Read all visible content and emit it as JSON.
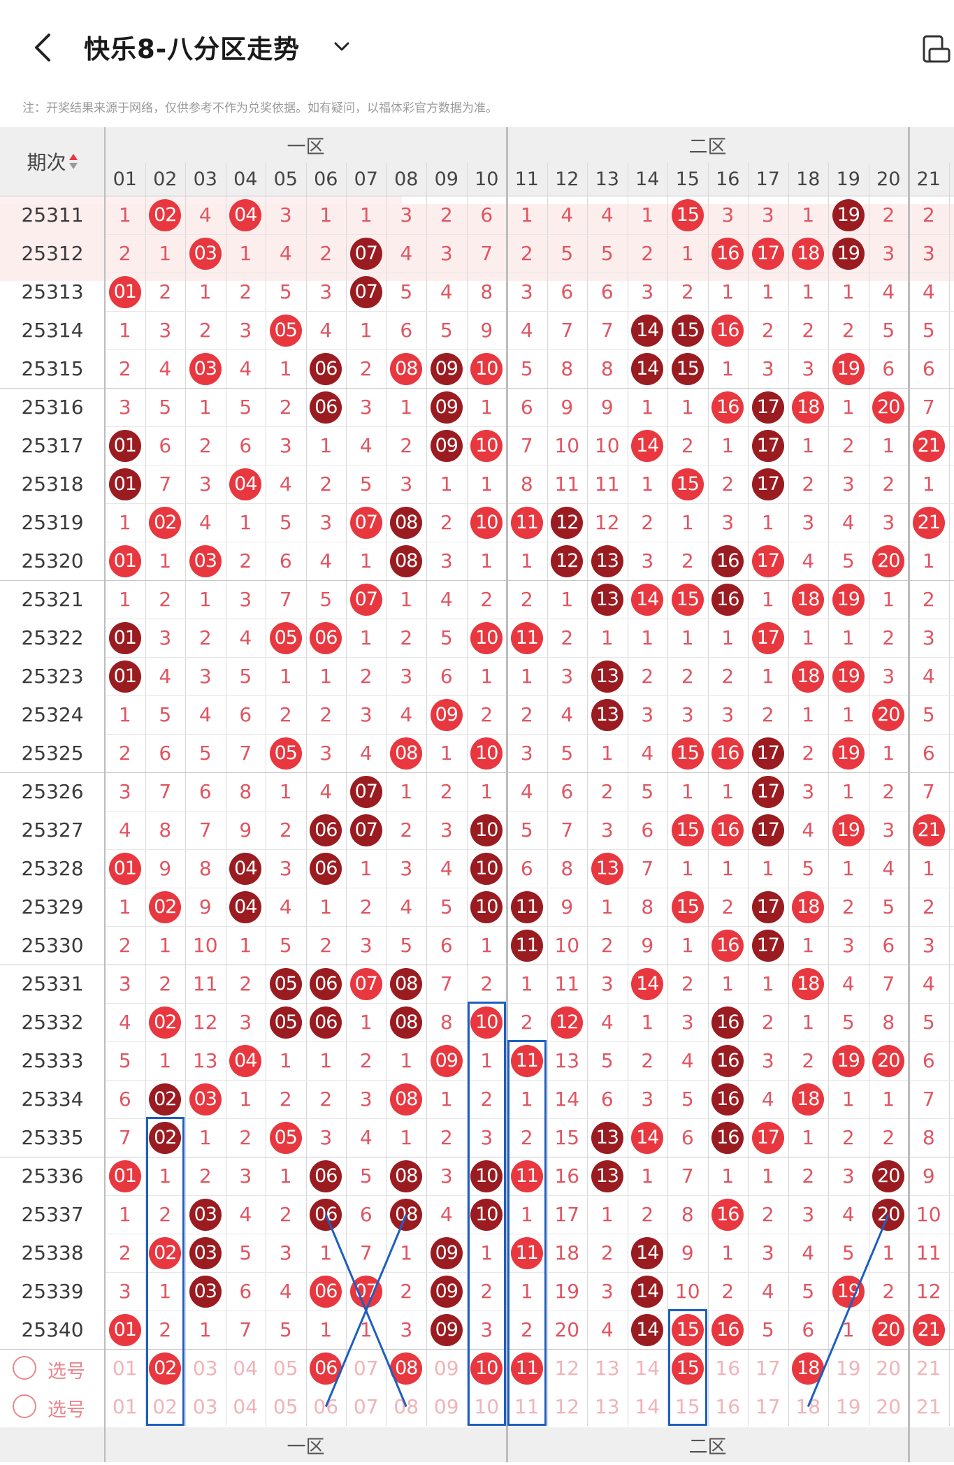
{
  "header": {
    "title": "快乐8-八分区走势",
    "notice": "注：开奖结果来源于网络，仅供参考不作为兑奖依据。如有疑问，以福体彩官方数据为准。"
  },
  "table": {
    "period_header": "期次",
    "zone_labels": [
      "一区",
      "二区"
    ],
    "columns": [
      "01",
      "02",
      "03",
      "04",
      "05",
      "06",
      "07",
      "08",
      "09",
      "10",
      "11",
      "12",
      "13",
      "14",
      "15",
      "16",
      "17",
      "18",
      "19",
      "20",
      "21"
    ],
    "rows": [
      {
        "period": "25311",
        "cells": [
          "1",
          "02",
          "4",
          "04",
          "3",
          "1",
          "1",
          "3",
          "2",
          "6",
          "1",
          "4",
          "4",
          "1",
          "15",
          "3",
          "3",
          "1",
          "19",
          "2",
          "2"
        ]
      },
      {
        "period": "25312",
        "cells": [
          "2",
          "1",
          "03",
          "1",
          "4",
          "2",
          "07",
          "4",
          "3",
          "7",
          "2",
          "5",
          "5",
          "2",
          "1",
          "16",
          "17",
          "18",
          "19",
          "3",
          "3"
        ]
      },
      {
        "period": "25313",
        "cells": [
          "01",
          "2",
          "1",
          "2",
          "5",
          "3",
          "07",
          "5",
          "4",
          "8",
          "3",
          "6",
          "6",
          "3",
          "2",
          "1",
          "1",
          "1",
          "1",
          "4",
          "4"
        ]
      },
      {
        "period": "25314",
        "cells": [
          "1",
          "3",
          "2",
          "3",
          "05",
          "4",
          "1",
          "6",
          "5",
          "9",
          "4",
          "7",
          "7",
          "14",
          "15",
          "16",
          "2",
          "2",
          "2",
          "5",
          "5"
        ]
      },
      {
        "period": "25315",
        "cells": [
          "2",
          "4",
          "03",
          "4",
          "1",
          "06",
          "2",
          "08",
          "09",
          "10",
          "5",
          "8",
          "8",
          "14",
          "15",
          "1",
          "3",
          "3",
          "19",
          "6",
          "6"
        ]
      },
      {
        "period": "25316",
        "cells": [
          "3",
          "5",
          "1",
          "5",
          "2",
          "06",
          "3",
          "1",
          "09",
          "1",
          "6",
          "9",
          "9",
          "1",
          "1",
          "16",
          "17",
          "18",
          "1",
          "20",
          "7"
        ]
      },
      {
        "period": "25317",
        "cells": [
          "01",
          "6",
          "2",
          "6",
          "3",
          "1",
          "4",
          "2",
          "09",
          "10",
          "7",
          "10",
          "10",
          "14",
          "2",
          "1",
          "17",
          "1",
          "2",
          "1",
          "21"
        ]
      },
      {
        "period": "25318",
        "cells": [
          "01",
          "7",
          "3",
          "04",
          "4",
          "2",
          "5",
          "3",
          "1",
          "1",
          "8",
          "11",
          "11",
          "1",
          "15",
          "2",
          "17",
          "2",
          "3",
          "2",
          "1"
        ]
      },
      {
        "period": "25319",
        "cells": [
          "1",
          "02",
          "4",
          "1",
          "5",
          "3",
          "07",
          "08",
          "2",
          "10",
          "11",
          "12",
          "12",
          "2",
          "1",
          "3",
          "1",
          "3",
          "4",
          "3",
          "21"
        ]
      },
      {
        "period": "25320",
        "cells": [
          "01",
          "1",
          "03",
          "2",
          "6",
          "4",
          "1",
          "08",
          "3",
          "1",
          "1",
          "12",
          "13",
          "3",
          "2",
          "16",
          "17",
          "4",
          "5",
          "20",
          "1"
        ]
      },
      {
        "period": "25321",
        "cells": [
          "1",
          "2",
          "1",
          "3",
          "7",
          "5",
          "07",
          "1",
          "4",
          "2",
          "2",
          "1",
          "13",
          "14",
          "15",
          "16",
          "1",
          "18",
          "19",
          "1",
          "2"
        ]
      },
      {
        "period": "25322",
        "cells": [
          "01",
          "3",
          "2",
          "4",
          "05",
          "06",
          "1",
          "2",
          "5",
          "10",
          "11",
          "2",
          "1",
          "1",
          "1",
          "1",
          "17",
          "1",
          "1",
          "2",
          "3"
        ]
      },
      {
        "period": "25323",
        "cells": [
          "01",
          "4",
          "3",
          "5",
          "1",
          "1",
          "2",
          "3",
          "6",
          "1",
          "1",
          "3",
          "13",
          "2",
          "2",
          "2",
          "1",
          "18",
          "19",
          "3",
          "4"
        ]
      },
      {
        "period": "25324",
        "cells": [
          "1",
          "5",
          "4",
          "6",
          "2",
          "2",
          "3",
          "4",
          "09",
          "2",
          "2",
          "4",
          "13",
          "3",
          "3",
          "3",
          "2",
          "1",
          "1",
          "20",
          "5"
        ]
      },
      {
        "period": "25325",
        "cells": [
          "2",
          "6",
          "5",
          "7",
          "05",
          "3",
          "4",
          "08",
          "1",
          "10",
          "3",
          "5",
          "1",
          "4",
          "15",
          "16",
          "17",
          "2",
          "19",
          "1",
          "6"
        ]
      },
      {
        "period": "25326",
        "cells": [
          "3",
          "7",
          "6",
          "8",
          "1",
          "4",
          "07",
          "1",
          "2",
          "1",
          "4",
          "6",
          "2",
          "5",
          "1",
          "1",
          "17",
          "3",
          "1",
          "2",
          "7"
        ]
      },
      {
        "period": "25327",
        "cells": [
          "4",
          "8",
          "7",
          "9",
          "2",
          "06",
          "07",
          "2",
          "3",
          "10",
          "5",
          "7",
          "3",
          "6",
          "15",
          "16",
          "17",
          "4",
          "19",
          "3",
          "21"
        ]
      },
      {
        "period": "25328",
        "cells": [
          "01",
          "9",
          "8",
          "04",
          "3",
          "06",
          "1",
          "3",
          "4",
          "10",
          "6",
          "8",
          "13",
          "7",
          "1",
          "1",
          "1",
          "5",
          "1",
          "4",
          "1"
        ]
      },
      {
        "period": "25329",
        "cells": [
          "1",
          "02",
          "9",
          "04",
          "4",
          "1",
          "2",
          "4",
          "5",
          "10",
          "11",
          "9",
          "1",
          "8",
          "15",
          "2",
          "17",
          "18",
          "2",
          "5",
          "2"
        ]
      },
      {
        "period": "25330",
        "cells": [
          "2",
          "1",
          "10",
          "1",
          "5",
          "2",
          "3",
          "5",
          "6",
          "1",
          "11",
          "10",
          "2",
          "9",
          "1",
          "16",
          "17",
          "1",
          "3",
          "6",
          "3"
        ]
      },
      {
        "period": "25331",
        "cells": [
          "3",
          "2",
          "11",
          "2",
          "05",
          "06",
          "07",
          "08",
          "7",
          "2",
          "1",
          "11",
          "3",
          "14",
          "2",
          "1",
          "1",
          "18",
          "4",
          "7",
          "4"
        ]
      },
      {
        "period": "25332",
        "cells": [
          "4",
          "02",
          "12",
          "3",
          "05",
          "06",
          "1",
          "08",
          "8",
          "10",
          "2",
          "12",
          "4",
          "1",
          "3",
          "16",
          "2",
          "1",
          "5",
          "8",
          "5"
        ]
      },
      {
        "period": "25333",
        "cells": [
          "5",
          "1",
          "13",
          "04",
          "1",
          "1",
          "2",
          "1",
          "09",
          "1",
          "11",
          "13",
          "5",
          "2",
          "4",
          "16",
          "3",
          "2",
          "19",
          "20",
          "6"
        ]
      },
      {
        "period": "25334",
        "cells": [
          "6",
          "02",
          "03",
          "1",
          "2",
          "2",
          "3",
          "08",
          "1",
          "2",
          "1",
          "14",
          "6",
          "3",
          "5",
          "16",
          "4",
          "18",
          "1",
          "1",
          "7"
        ]
      },
      {
        "period": "25335",
        "cells": [
          "7",
          "02",
          "1",
          "2",
          "05",
          "3",
          "4",
          "1",
          "2",
          "3",
          "2",
          "15",
          "13",
          "14",
          "6",
          "16",
          "17",
          "1",
          "2",
          "2",
          "8"
        ]
      },
      {
        "period": "25336",
        "cells": [
          "01",
          "1",
          "2",
          "3",
          "1",
          "06",
          "5",
          "08",
          "3",
          "10",
          "11",
          "16",
          "13",
          "1",
          "7",
          "1",
          "1",
          "2",
          "3",
          "20",
          "9"
        ]
      },
      {
        "period": "25337",
        "cells": [
          "1",
          "2",
          "03",
          "4",
          "2",
          "06",
          "6",
          "08",
          "4",
          "10",
          "1",
          "17",
          "1",
          "2",
          "8",
          "16",
          "2",
          "3",
          "4",
          "20",
          "10"
        ]
      },
      {
        "period": "25338",
        "cells": [
          "2",
          "02",
          "03",
          "5",
          "3",
          "1",
          "7",
          "1",
          "09",
          "1",
          "11",
          "18",
          "2",
          "14",
          "9",
          "1",
          "3",
          "4",
          "5",
          "1",
          "11"
        ]
      },
      {
        "period": "25339",
        "cells": [
          "3",
          "1",
          "03",
          "6",
          "4",
          "06",
          "07",
          "2",
          "09",
          "2",
          "1",
          "19",
          "3",
          "14",
          "10",
          "2",
          "4",
          "5",
          "19",
          "2",
          "12"
        ]
      },
      {
        "period": "25340",
        "cells": [
          "01",
          "2",
          "1",
          "7",
          "5",
          "1",
          "1",
          "3",
          "09",
          "3",
          "2",
          "20",
          "4",
          "14",
          "15",
          "16",
          "5",
          "6",
          "1",
          "20",
          "21"
        ]
      }
    ],
    "select_label": "选号",
    "select_row1_picked": [
      "02",
      "06",
      "08",
      "10",
      "11",
      "15",
      "18"
    ]
  },
  "colors": {
    "ball_red": "#e8373f",
    "ball_dark": "#9a1b20",
    "miss_text": "#e05561",
    "box_blue": "#1e5fbf"
  },
  "icons": [
    "back-arrow-icon",
    "chevron-down-icon",
    "screen-rotate-icon"
  ]
}
